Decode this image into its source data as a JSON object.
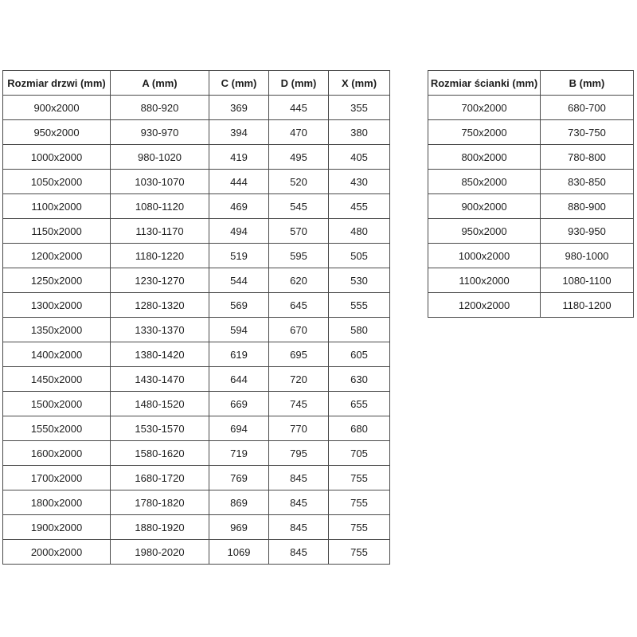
{
  "colors": {
    "background": "#ffffff",
    "table_border": "#4a4a4a",
    "text": "#1d1d1d"
  },
  "door_table": {
    "headers": [
      "Rozmiar drzwi (mm)",
      "A (mm)",
      "C (mm)",
      "D (mm)",
      "X (mm)"
    ],
    "rows": [
      [
        "900x2000",
        "880-920",
        "369",
        "445",
        "355"
      ],
      [
        "950x2000",
        "930-970",
        "394",
        "470",
        "380"
      ],
      [
        "1000x2000",
        "980-1020",
        "419",
        "495",
        "405"
      ],
      [
        "1050x2000",
        "1030-1070",
        "444",
        "520",
        "430"
      ],
      [
        "1100x2000",
        "1080-1120",
        "469",
        "545",
        "455"
      ],
      [
        "1150x2000",
        "1130-1170",
        "494",
        "570",
        "480"
      ],
      [
        "1200x2000",
        "1180-1220",
        "519",
        "595",
        "505"
      ],
      [
        "1250x2000",
        "1230-1270",
        "544",
        "620",
        "530"
      ],
      [
        "1300x2000",
        "1280-1320",
        "569",
        "645",
        "555"
      ],
      [
        "1350x2000",
        "1330-1370",
        "594",
        "670",
        "580"
      ],
      [
        "1400x2000",
        "1380-1420",
        "619",
        "695",
        "605"
      ],
      [
        "1450x2000",
        "1430-1470",
        "644",
        "720",
        "630"
      ],
      [
        "1500x2000",
        "1480-1520",
        "669",
        "745",
        "655"
      ],
      [
        "1550x2000",
        "1530-1570",
        "694",
        "770",
        "680"
      ],
      [
        "1600x2000",
        "1580-1620",
        "719",
        "795",
        "705"
      ],
      [
        "1700x2000",
        "1680-1720",
        "769",
        "845",
        "755"
      ],
      [
        "1800x2000",
        "1780-1820",
        "869",
        "845",
        "755"
      ],
      [
        "1900x2000",
        "1880-1920",
        "969",
        "845",
        "755"
      ],
      [
        "2000x2000",
        "1980-2020",
        "1069",
        "845",
        "755"
      ]
    ]
  },
  "wall_table": {
    "headers": [
      "Rozmiar ścianki (mm)",
      "B (mm)"
    ],
    "rows": [
      [
        "700x2000",
        "680-700"
      ],
      [
        "750x2000",
        "730-750"
      ],
      [
        "800x2000",
        "780-800"
      ],
      [
        "850x2000",
        "830-850"
      ],
      [
        "900x2000",
        "880-900"
      ],
      [
        "950x2000",
        "930-950"
      ],
      [
        "1000x2000",
        "980-1000"
      ],
      [
        "1100x2000",
        "1080-1100"
      ],
      [
        "1200x2000",
        "1180-1200"
      ]
    ]
  }
}
